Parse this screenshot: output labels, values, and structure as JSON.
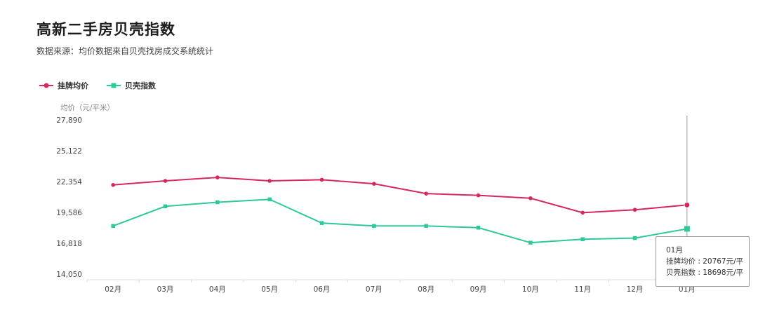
{
  "title": "高新二手房贝壳指数",
  "subtitle": "数据来源：均价数据来自贝壳找房成交系统统计",
  "colors": {
    "listing": "#d6275f",
    "index": "#2ec99a",
    "axis": "#dddddd",
    "crosshair": "#999999"
  },
  "tooltip": {
    "month": "01月",
    "line1": "挂牌均价 : 20767元/平",
    "line2": "贝壳指数 : 18698元/平"
  },
  "chart_data": {
    "type": "line",
    "title": "高新二手房贝壳指数",
    "ylabel": "均价（元/平米）",
    "xlabel": "",
    "ylim": [
      14050,
      27890
    ],
    "yticks": [
      "27,890",
      "25,122",
      "22,354",
      "19,586",
      "16,818",
      "14,050"
    ],
    "categories": [
      "02月",
      "03月",
      "04月",
      "05月",
      "06月",
      "07月",
      "08月",
      "09月",
      "10月",
      "11月",
      "12月",
      "01月"
    ],
    "legend_position": "top-left",
    "grid": false,
    "series": [
      {
        "name": "挂牌均价",
        "color": "#d6275f",
        "marker": "circle",
        "values": [
          22500,
          22850,
          23150,
          22850,
          22950,
          22600,
          21750,
          21600,
          21350,
          20100,
          20350,
          20767
        ]
      },
      {
        "name": "贝壳指数",
        "color": "#2ec99a",
        "marker": "square",
        "values": [
          18950,
          20650,
          21000,
          21250,
          19200,
          18950,
          18950,
          18800,
          17500,
          17800,
          17900,
          18698
        ]
      }
    ]
  }
}
